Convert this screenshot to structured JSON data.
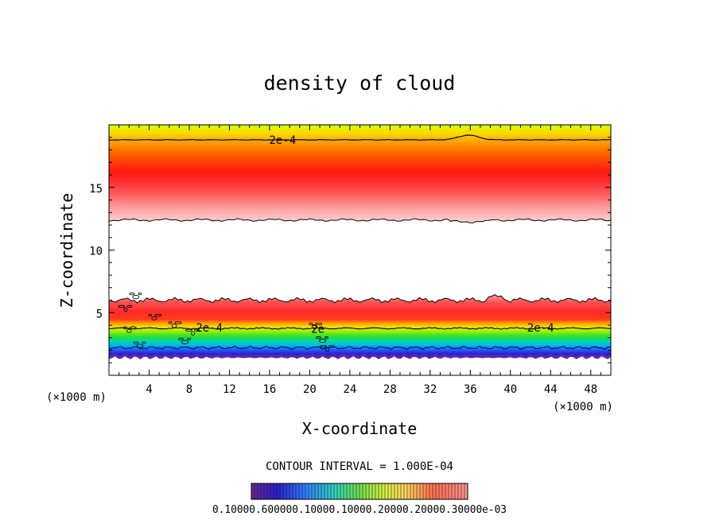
{
  "chart_data": {
    "type": "contour",
    "title": "density of cloud",
    "xlabel": "X-coordinate",
    "ylabel": "Z-coordinate",
    "x_unit": "(×1000 m)",
    "z_unit": "(×1000 m)",
    "xlim": [
      0,
      50
    ],
    "ylim": [
      0,
      20
    ],
    "x_ticks": [
      4,
      8,
      12,
      16,
      20,
      24,
      28,
      32,
      36,
      40,
      44,
      48
    ],
    "y_ticks": [
      5,
      10,
      15
    ],
    "contour_interval_text": "CONTOUR INTERVAL = 1.000E-04",
    "contour_labels": [
      {
        "text": "2e-4",
        "x": 17.3,
        "z": 18.8
      },
      {
        "text": "2e-4",
        "x": 10.0,
        "z": 3.8
      },
      {
        "text": "2e",
        "x": 20.8,
        "z": 3.7
      },
      {
        "text": "2e-4",
        "x": 43.0,
        "z": 3.8
      }
    ],
    "colorbar_labels": "0.10000.600000.10000.10000.20000.20000.30000e-03",
    "colors": {
      "plot_background": "#ffffff",
      "contour_line": "#000000",
      "cloud_core": "#ff1010",
      "cloud_top": "#ccff00",
      "cloud_base": "#5a1aa8"
    }
  }
}
